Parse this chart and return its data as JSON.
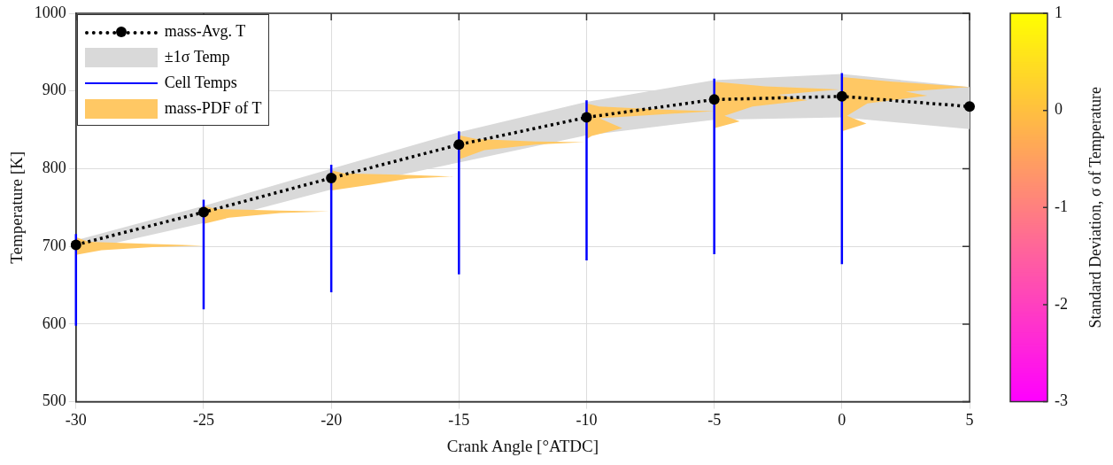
{
  "chart_data": {
    "type": "line",
    "xlabel": "Crank Angle [°ATDC]",
    "ylabel": "Temperature [K]",
    "clabel": "Standard Deviation, σ of Temperature",
    "clim": [
      -3,
      1
    ],
    "cticks": [
      -3,
      -2,
      -1,
      0,
      1
    ],
    "xlim": [
      -30,
      5
    ],
    "xticks": [
      -30,
      -25,
      -20,
      -15,
      -10,
      -5,
      0,
      5
    ],
    "ylim": [
      500,
      1000
    ],
    "yticks": [
      500,
      600,
      700,
      800,
      900,
      1000
    ],
    "grid": true,
    "legend": "top left",
    "series": [
      {
        "name": "mass-Avg. T",
        "type": "line",
        "color": "#000000",
        "marker": "circle",
        "line_style": "dotted",
        "x": [
          -30,
          -25,
          -20,
          -15,
          -10,
          -5,
          0,
          5
        ],
        "values": [
          702,
          744,
          788,
          831,
          866,
          889,
          893,
          880
        ]
      },
      {
        "name": "±1σ Temp",
        "type": "area",
        "color": "#d9d9d9",
        "x": [
          -30,
          -25,
          -20,
          -15,
          -10,
          -5,
          0,
          5,
          5,
          0,
          -5,
          -10,
          -15,
          -20,
          -25,
          -30
        ],
        "values": [
          708,
          752,
          800,
          847,
          886,
          914,
          922,
          905,
          851,
          866,
          863,
          843,
          808,
          773,
          730,
          693
        ]
      },
      {
        "name": "Cell Temps",
        "type": "line",
        "color": "#0000ff",
        "marker": "none",
        "x": [
          -30,
          -30
        ],
        "values": [
          598,
          716
        ]
      },
      {
        "type": "line",
        "color": "#0000ff",
        "marker": "none",
        "x": [
          -25,
          -25
        ],
        "values": [
          619,
          760
        ]
      },
      {
        "type": "line",
        "color": "#0000ff",
        "marker": "none",
        "x": [
          -20,
          -20
        ],
        "values": [
          641,
          805
        ]
      },
      {
        "type": "line",
        "color": "#0000ff",
        "marker": "none",
        "x": [
          -15,
          -15
        ],
        "values": [
          664,
          848
        ]
      },
      {
        "type": "line",
        "color": "#0000ff",
        "marker": "none",
        "x": [
          -10,
          -10
        ],
        "values": [
          682,
          888
        ]
      },
      {
        "type": "line",
        "color": "#0000ff",
        "marker": "none",
        "x": [
          -5,
          -5
        ],
        "values": [
          690,
          916
        ]
      },
      {
        "type": "line",
        "color": "#0000ff",
        "marker": "none",
        "x": [
          0,
          0
        ],
        "values": [
          677,
          923
        ]
      },
      {
        "name": "mass-PDF of T",
        "type": "area",
        "color": "#ffc864",
        "x": [
          -30,
          -29.5,
          -27,
          -25,
          -27,
          -29,
          -30
        ],
        "values": [
          712,
          706,
          703,
          701,
          699,
          695,
          689
        ]
      },
      {
        "type": "area",
        "color": "#ffc864",
        "x": [
          -25,
          -24.5,
          -22,
          -20.1,
          -22,
          -24,
          -25
        ],
        "values": [
          752,
          748,
          746,
          745,
          743,
          737,
          729
        ]
      },
      {
        "type": "area",
        "color": "#ffc864",
        "x": [
          -20,
          -19.5,
          -17,
          -15.2,
          -17,
          -18.5,
          -20
        ],
        "values": [
          798,
          794,
          792,
          790,
          787,
          779,
          772
        ]
      },
      {
        "type": "area",
        "color": "#ffc864",
        "x": [
          -15,
          -14.3,
          -12,
          -10.1,
          -12,
          -14,
          -15
        ],
        "values": [
          843,
          838,
          835,
          834,
          831,
          824,
          812
        ]
      },
      {
        "type": "area",
        "color": "#ffc864",
        "x": [
          -10,
          -9.5,
          -7,
          -5,
          -7,
          -9.5,
          -8.6,
          -9.8,
          -10
        ],
        "values": [
          884,
          880,
          876,
          874,
          870,
          865,
          852,
          842,
          838
        ]
      },
      {
        "type": "area",
        "color": "#ffc864",
        "x": [
          -5,
          -3,
          -0.1,
          -2.5,
          -1.35,
          -3.5,
          -4.6,
          -4,
          -5
        ],
        "values": [
          912,
          906,
          902,
          895,
          888,
          880,
          868,
          861,
          852
        ]
      },
      {
        "type": "area",
        "color": "#ffc864",
        "x": [
          0,
          2,
          5,
          2.5,
          3.35,
          1,
          0.2,
          0.96,
          0
        ],
        "values": [
          918,
          912,
          905,
          899,
          894,
          884,
          868,
          858,
          848
        ]
      }
    ]
  }
}
